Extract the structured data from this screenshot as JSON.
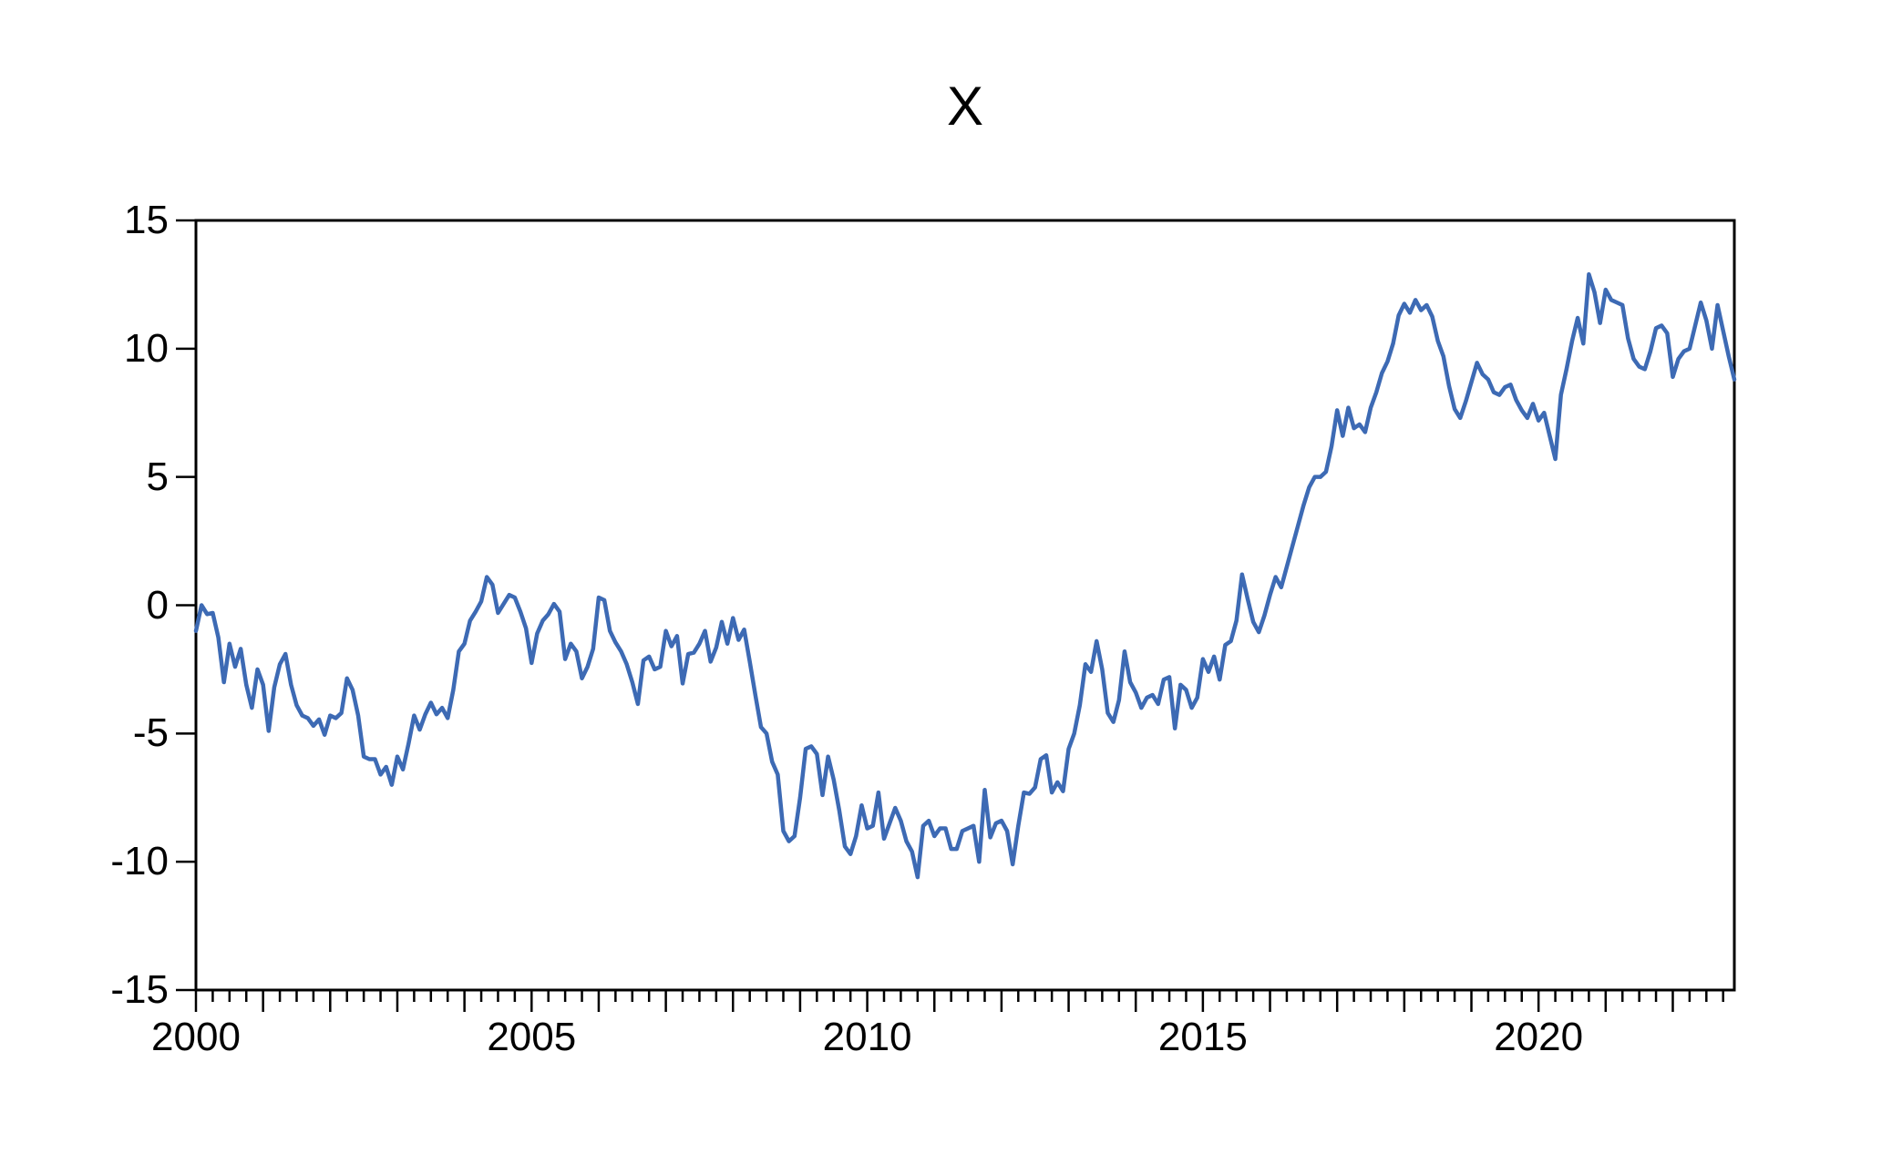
{
  "title": "X",
  "colors": {
    "series_line": "#3d6ab4",
    "axis": "#000000",
    "background": "#ffffff",
    "text": "#000000"
  },
  "axes": {
    "y": {
      "tick_values": [
        15,
        10,
        5,
        0,
        -5,
        -10,
        -15
      ],
      "tick_labels": [
        "15",
        "10",
        "5",
        "0",
        "-5",
        "-10",
        "-15"
      ],
      "min": -15,
      "max": 15
    },
    "x": {
      "labeled_years": [
        2000,
        2005,
        2010,
        2015,
        2020
      ],
      "tick_labels": [
        "2000",
        "2005",
        "2010",
        "2015",
        "2020"
      ],
      "first_year": 2000,
      "last_year": 2022,
      "minor_tick_interval_months": 3
    }
  },
  "chart_data": {
    "type": "line",
    "title": "X",
    "series_name": "X",
    "frequency": "monthly",
    "start": "2000M01",
    "end": "2022M12",
    "xlabel": "",
    "ylabel": "",
    "ylim": [
      -15,
      15
    ],
    "xlim": [
      2000,
      2023
    ],
    "grid": false,
    "legend_position": "none",
    "values": [
      -1.0,
      0.0,
      -0.35,
      -0.3,
      -1.25,
      -3.0,
      -1.5,
      -2.4,
      -1.7,
      -3.1,
      -4.0,
      -2.5,
      -3.1,
      -4.9,
      -3.2,
      -2.3,
      -1.9,
      -3.1,
      -3.9,
      -4.3,
      -4.4,
      -4.7,
      -4.45,
      -5.05,
      -4.3,
      -4.4,
      -4.2,
      -2.85,
      -3.3,
      -4.3,
      -5.9,
      -6.0,
      -6.0,
      -6.6,
      -6.3,
      -7.0,
      -5.9,
      -6.4,
      -5.4,
      -4.3,
      -4.85,
      -4.25,
      -3.8,
      -4.25,
      -4.0,
      -4.4,
      -3.3,
      -1.8,
      -1.5,
      -0.6,
      -0.25,
      0.15,
      1.1,
      0.8,
      -0.3,
      0.05,
      0.4,
      0.3,
      -0.25,
      -0.9,
      -2.25,
      -1.1,
      -0.6,
      -0.35,
      0.05,
      -0.25,
      -2.1,
      -1.5,
      -1.8,
      -2.85,
      -2.4,
      -1.7,
      0.3,
      0.2,
      -1.0,
      -1.45,
      -1.8,
      -2.3,
      -3.0,
      -3.85,
      -2.15,
      -2.0,
      -2.5,
      -2.4,
      -1.0,
      -1.6,
      -1.2,
      -3.05,
      -1.9,
      -1.85,
      -1.5,
      -1.0,
      -2.2,
      -1.65,
      -0.65,
      -1.5,
      -0.5,
      -1.35,
      -0.95,
      -2.2,
      -3.5,
      -4.75,
      -5.0,
      -6.1,
      -6.6,
      -8.8,
      -9.2,
      -9.0,
      -7.5,
      -5.6,
      -5.5,
      -5.8,
      -7.4,
      -5.9,
      -6.8,
      -8.0,
      -9.4,
      -9.7,
      -9.0,
      -7.8,
      -8.7,
      -8.6,
      -7.3,
      -9.1,
      -8.5,
      -7.9,
      -8.4,
      -9.2,
      -9.6,
      -10.6,
      -8.6,
      -8.4,
      -9.0,
      -8.7,
      -8.7,
      -9.5,
      -9.5,
      -8.8,
      -8.7,
      -8.6,
      -10.0,
      -7.2,
      -9.05,
      -8.5,
      -8.4,
      -8.8,
      -10.1,
      -8.6,
      -7.3,
      -7.35,
      -7.1,
      -6.0,
      -5.85,
      -7.3,
      -6.9,
      -7.25,
      -5.6,
      -5.0,
      -3.9,
      -2.3,
      -2.6,
      -1.4,
      -2.5,
      -4.2,
      -4.55,
      -3.7,
      -1.8,
      -3.0,
      -3.4,
      -4.0,
      -3.6,
      -3.5,
      -3.85,
      -2.9,
      -2.8,
      -4.8,
      -3.1,
      -3.3,
      -4.0,
      -3.6,
      -2.1,
      -2.6,
      -2.0,
      -2.9,
      -1.55,
      -1.4,
      -0.6,
      1.2,
      0.25,
      -0.65,
      -1.05,
      -0.4,
      0.4,
      1.1,
      0.7,
      1.5,
      2.3,
      3.1,
      3.9,
      4.6,
      5.0,
      5.0,
      5.2,
      6.2,
      7.6,
      6.6,
      7.7,
      6.9,
      7.05,
      6.75,
      7.7,
      8.3,
      9.05,
      9.5,
      10.2,
      11.3,
      11.75,
      11.4,
      11.9,
      11.5,
      11.7,
      11.25,
      10.3,
      9.7,
      8.55,
      7.65,
      7.3,
      7.95,
      8.7,
      9.45,
      9.0,
      8.8,
      8.3,
      8.2,
      8.5,
      8.6,
      8.0,
      7.6,
      7.3,
      7.85,
      7.2,
      7.5,
      6.6,
      5.7,
      8.2,
      9.2,
      10.3,
      11.2,
      10.2,
      12.9,
      12.2,
      11.0,
      12.3,
      11.9,
      11.8,
      11.7,
      10.4,
      9.6,
      9.3,
      9.2,
      9.9,
      10.8,
      10.9,
      10.6,
      8.9,
      9.6,
      9.9,
      10.0,
      10.9,
      11.8,
      11.1,
      10.0,
      11.7,
      10.7,
      9.7,
      8.8
    ]
  }
}
